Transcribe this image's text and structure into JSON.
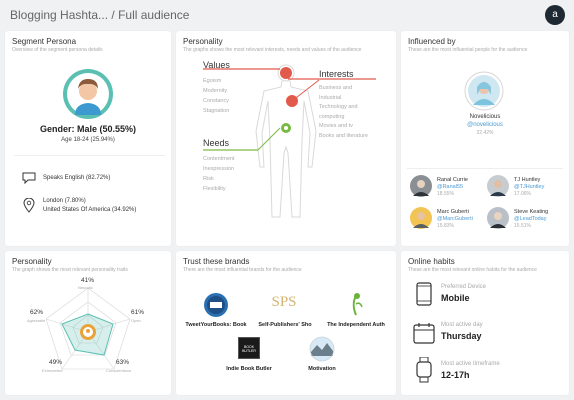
{
  "header": {
    "title": "Blogging Hashta... / Full audience"
  },
  "segment": {
    "title": "Segment Persona",
    "subtitle": "Overview of the segment persona details",
    "gender": "Gender: Male (50.55%)",
    "age": "Age 18-24 (25.94%)",
    "language": "Speaks English (82.72%)",
    "location_line1": "London (7.80%)",
    "location_line2": "United States Of America (34.92%)"
  },
  "persona": {
    "title": "Personality",
    "subtitle": "The graphs shows the most relevant interests, needs and values of the audience",
    "values_label": "Values",
    "values_items": [
      "Egoism",
      "Modernity",
      "Constancy",
      "Stagnation"
    ],
    "interests_label": "Interests",
    "interests_items": [
      "Business and",
      "Industrial",
      "Technology and",
      "computing",
      "Movies and tv",
      "Books and literature"
    ],
    "needs_label": "Needs",
    "needs_items": [
      "Contentment",
      "Inexpression",
      "Risk",
      "Flexibility"
    ]
  },
  "influence": {
    "title": "Influenced by",
    "subtitle": "These are the most influential people for the audience",
    "top": {
      "name": "Novelicious",
      "handle": "@novelicious",
      "pct": "22.42%"
    },
    "people": [
      {
        "name": "Ranal Currie",
        "handle": "@Ranal55",
        "pct": "18.55%"
      },
      {
        "name": "TJ Huntley",
        "handle": "@TJHuntley",
        "pct": "17.06%"
      },
      {
        "name": "Marc Guberti",
        "handle": "@MarcGuberti",
        "pct": "15.83%"
      },
      {
        "name": "Steve Keating",
        "handle": "@LeadToday",
        "pct": "15.51%"
      }
    ]
  },
  "traits": {
    "title": "Personality",
    "subtitle": "The graph shows the most relevant personality traits",
    "items": [
      {
        "label": "Neurotic",
        "pct": "41%"
      },
      {
        "label": "Open",
        "pct": "61%"
      },
      {
        "label": "Conscientious",
        "pct": "63%"
      },
      {
        "label": "Extroverted",
        "pct": "49%"
      },
      {
        "label": "Agreeable",
        "pct": "62%"
      }
    ]
  },
  "brands": {
    "title": "Trust these brands",
    "subtitle": "There are the most influential brands for the audience",
    "items": [
      {
        "name": "TweetYourBooks: Book"
      },
      {
        "name": "Self-Publishers' Sho"
      },
      {
        "name": "The Independent Auth"
      },
      {
        "name": "Indie Book Butler"
      },
      {
        "name": "Motivation"
      }
    ],
    "sps_text": "SPS",
    "book_butler_logo_text": "BOOK BUTLER"
  },
  "habits": {
    "title": "Online habits",
    "subtitle": "These are the most relevant online habits for the audience",
    "device_label": "Preferred Device",
    "device_value": "Mobile",
    "day_label": "Most active day",
    "day_value": "Thursday",
    "time_label": "Most active timeframe",
    "time_value": "12-17h"
  },
  "colors": {
    "teal": "#5bbfb2",
    "red": "#e25a4b",
    "green": "#7ab942",
    "link": "#4a9ad4"
  }
}
